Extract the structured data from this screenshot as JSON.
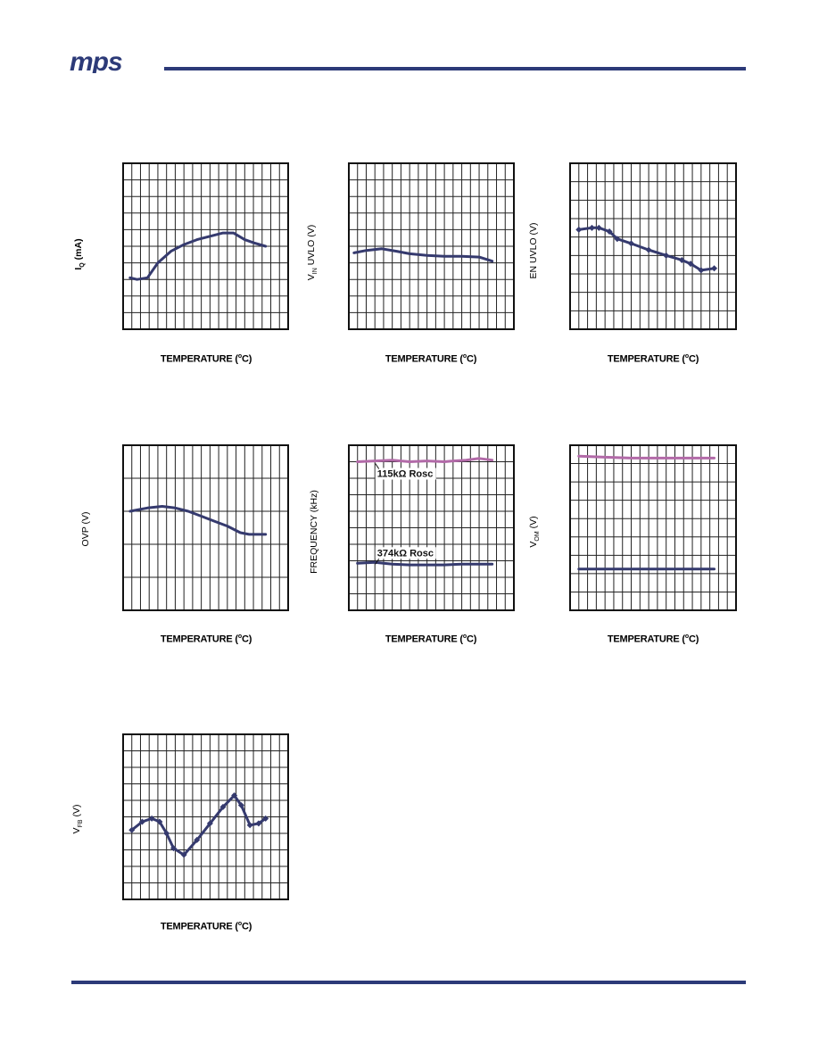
{
  "header": {
    "logo_text": "mps",
    "brand_color": "#2c3a78"
  },
  "colors": {
    "series_navy": "#353a6e",
    "series_magenta": "#b26aa8",
    "grid": "#222222"
  },
  "chart_data": [
    {
      "type": "line",
      "ylabel_main": "I",
      "ylabel_sub": "Q",
      "ylabel_rest": " (mA)",
      "xlabel": "TEMPERATURE (",
      "xlabel_sup": "o",
      "xlabel_end": "C)",
      "grid_cols": 19,
      "grid_rows": 10,
      "xlim": [
        0,
        19
      ],
      "ylim": [
        0,
        10
      ],
      "series": [
        {
          "color": "#353a6e",
          "markers": false,
          "x": [
            0.8,
            1.6,
            2.8,
            4.0,
            5.5,
            7.0,
            8.5,
            10.0,
            11.5,
            12.7,
            14.0,
            15.1,
            16.4
          ],
          "y": [
            3.1,
            3.0,
            3.1,
            4.0,
            4.7,
            5.1,
            5.4,
            5.6,
            5.8,
            5.8,
            5.4,
            5.2,
            5.0
          ]
        }
      ]
    },
    {
      "type": "line",
      "ylabel_main": "V",
      "ylabel_sub": "IN",
      "ylabel_rest": " UVLO (V)",
      "xlabel": "TEMPERATURE (",
      "xlabel_sup": "o",
      "xlabel_end": "C)",
      "grid_cols": 19,
      "grid_rows": 10,
      "xlim": [
        0,
        19
      ],
      "ylim": [
        0,
        10
      ],
      "series": [
        {
          "color": "#353a6e",
          "markers": false,
          "x": [
            0.6,
            2.0,
            3.8,
            5.5,
            7.0,
            9.0,
            11.0,
            13.0,
            15.0,
            16.5
          ],
          "y": [
            4.6,
            4.75,
            4.85,
            4.7,
            4.55,
            4.45,
            4.4,
            4.4,
            4.35,
            4.1
          ]
        }
      ]
    },
    {
      "type": "line",
      "ylabel_main": "EN UVLO (V)",
      "ylabel_sub": "",
      "ylabel_rest": "",
      "xlabel": "TEMPERATURE (",
      "xlabel_sup": "o",
      "xlabel_end": "C)",
      "grid_cols": 19,
      "grid_rows": 9,
      "xlim": [
        0,
        19
      ],
      "ylim": [
        0,
        9
      ],
      "series": [
        {
          "color": "#353a6e",
          "markers": true,
          "x": [
            1.0,
            2.5,
            3.3,
            4.5,
            5.4,
            7.0,
            9.0,
            11.0,
            12.8,
            13.8,
            15.0,
            16.5
          ],
          "y": [
            5.4,
            5.5,
            5.5,
            5.3,
            4.9,
            4.65,
            4.3,
            4.0,
            3.75,
            3.55,
            3.2,
            3.3
          ]
        }
      ]
    },
    {
      "type": "line",
      "ylabel_main": "OVP (V)",
      "ylabel_sub": "",
      "ylabel_rest": "",
      "xlabel": "TEMPERATURE (",
      "xlabel_sup": "o",
      "xlabel_end": "C)",
      "grid_cols": 19,
      "grid_rows": 5,
      "xlim": [
        0,
        19
      ],
      "ylim": [
        0,
        5
      ],
      "series": [
        {
          "color": "#353a6e",
          "markers": false,
          "x": [
            0.8,
            2.8,
            4.5,
            6.0,
            7.5,
            9.0,
            10.5,
            12.0,
            13.5,
            14.5,
            15.5,
            16.4
          ],
          "y": [
            3.0,
            3.1,
            3.15,
            3.1,
            3.0,
            2.85,
            2.7,
            2.55,
            2.35,
            2.3,
            2.3,
            2.3
          ]
        }
      ]
    },
    {
      "type": "line",
      "ylabel_main": "FREQUENCY (kHz)",
      "ylabel_sub": "",
      "ylabel_rest": "",
      "xlabel": "TEMPERATURE (",
      "xlabel_sup": "o",
      "xlabel_end": "C)",
      "grid_cols": 19,
      "grid_rows": 10,
      "xlim": [
        0,
        19
      ],
      "ylim": [
        0,
        10
      ],
      "series": [
        {
          "name": "115kΩ Rosc",
          "color": "#b26aa8",
          "markers": false,
          "x": [
            1.0,
            3.0,
            5.0,
            7.0,
            9.0,
            11.0,
            12.0,
            13.5,
            15.0,
            16.5
          ],
          "y": [
            9.0,
            9.05,
            9.1,
            9.0,
            9.05,
            9.0,
            9.05,
            9.1,
            9.2,
            9.1
          ]
        },
        {
          "name": "374kΩ Rosc",
          "color": "#353a6e",
          "markers": false,
          "x": [
            1.0,
            3.0,
            5.0,
            7.0,
            9.0,
            11.0,
            13.0,
            15.0,
            16.5
          ],
          "y": [
            2.85,
            2.9,
            2.8,
            2.75,
            2.75,
            2.75,
            2.8,
            2.8,
            2.8
          ]
        }
      ]
    },
    {
      "type": "line",
      "ylabel_main": "V",
      "ylabel_sub": "OM",
      "ylabel_rest": " (V)",
      "xlabel": "TEMPERATURE (",
      "xlabel_sup": "o",
      "xlabel_end": "C)",
      "grid_cols": 19,
      "grid_rows": 9,
      "xlim": [
        0,
        19
      ],
      "ylim": [
        0,
        9
      ],
      "series": [
        {
          "color": "#b26aa8",
          "markers": false,
          "x": [
            1.0,
            4.0,
            7.0,
            10.0,
            13.0,
            16.5
          ],
          "y": [
            8.4,
            8.35,
            8.3,
            8.3,
            8.3,
            8.3
          ]
        },
        {
          "color": "#353a6e",
          "markers": false,
          "x": [
            1.0,
            4.0,
            7.0,
            10.0,
            13.0,
            16.5
          ],
          "y": [
            2.25,
            2.25,
            2.25,
            2.25,
            2.25,
            2.25
          ]
        }
      ]
    },
    {
      "type": "line",
      "ylabel_main": "V",
      "ylabel_sub": "FB",
      "ylabel_rest": " (V)",
      "xlabel": "TEMPERATURE (",
      "xlabel_sup": "o",
      "xlabel_end": "C)",
      "grid_cols": 19,
      "grid_rows": 10,
      "xlim": [
        0,
        19
      ],
      "ylim": [
        0,
        10
      ],
      "series": [
        {
          "color": "#353a6e",
          "markers": true,
          "x": [
            1.0,
            2.2,
            3.3,
            4.2,
            5.0,
            5.8,
            7.0,
            8.5,
            10.0,
            11.5,
            12.8,
            13.6,
            14.6,
            15.6,
            16.4
          ],
          "y": [
            4.2,
            4.7,
            4.9,
            4.7,
            4.0,
            3.1,
            2.7,
            3.6,
            4.6,
            5.6,
            6.3,
            5.7,
            4.5,
            4.6,
            4.9
          ]
        }
      ]
    }
  ]
}
